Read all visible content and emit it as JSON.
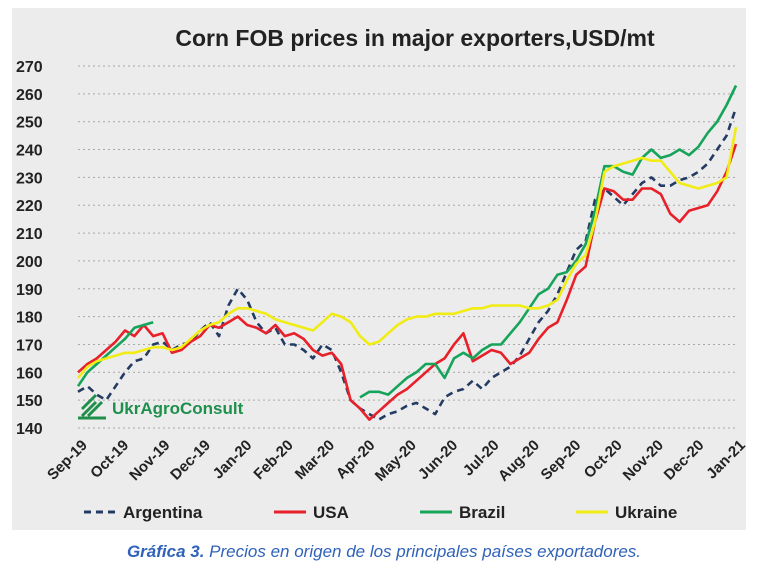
{
  "chart_data": {
    "type": "line",
    "title": "Corn FOB prices in major exporters,USD/mt",
    "ylim": [
      140,
      270
    ],
    "yticks": [
      140,
      150,
      160,
      170,
      180,
      190,
      200,
      210,
      220,
      230,
      240,
      250,
      260,
      270
    ],
    "x": [
      0,
      1,
      2,
      3,
      4,
      5,
      6,
      7,
      8,
      9,
      10,
      11,
      12,
      13,
      14,
      15,
      16,
      17,
      18,
      19,
      20,
      21,
      22,
      23,
      24,
      25,
      26,
      27,
      28,
      29,
      30,
      31,
      32,
      33,
      34,
      35,
      36,
      37,
      38,
      39,
      40,
      41,
      42,
      43,
      44,
      45,
      46,
      47,
      48,
      49,
      50,
      51,
      52,
      53,
      54,
      55,
      56,
      57,
      58,
      59,
      60,
      61,
      62,
      63,
      64,
      65,
      66,
      67,
      68,
      69,
      70
    ],
    "xtick_labels": [
      "Sep-19",
      "Oct-19",
      "Nov-19",
      "Dec-19",
      "Jan-20",
      "Feb-20",
      "Mar-20",
      "Apr-20",
      "May-20",
      "Jun-20",
      "Jul-20",
      "Aug-20",
      "Sep-20",
      "Oct-20",
      "Nov-20",
      "Dec-20",
      "Jan-21"
    ],
    "xtick_positions": [
      0,
      4.4,
      8.8,
      13.1,
      17.5,
      21.9,
      26.3,
      30.6,
      35,
      39.4,
      43.8,
      48.1,
      52.5,
      56.9,
      61.3,
      65.6,
      70
    ],
    "grid": true,
    "legend_position": "bottom",
    "series": [
      {
        "name": "Argentina",
        "color": "#243b63",
        "dash": "7,5",
        "values": [
          153,
          155,
          152,
          150,
          155,
          160,
          164,
          165,
          170,
          171,
          168,
          170,
          171,
          175,
          178,
          173,
          184,
          190,
          186,
          178,
          174,
          176,
          170,
          170,
          168,
          165,
          170,
          168,
          160,
          150,
          147,
          145,
          143,
          145,
          146,
          148,
          149,
          147,
          145,
          151,
          153,
          154,
          157,
          154,
          158,
          160,
          162,
          166,
          172,
          178,
          182,
          188,
          196,
          204,
          207,
          222,
          226,
          223,
          220,
          224,
          228,
          230,
          227,
          227,
          229,
          230,
          232,
          235,
          240,
          245,
          255
        ]
      },
      {
        "name": "USA",
        "color": "#e8202a",
        "dash": "",
        "values": [
          160,
          163,
          165,
          168,
          171,
          175,
          173,
          177,
          173,
          174,
          167,
          168,
          171,
          173,
          177,
          176,
          178,
          180,
          177,
          176,
          174,
          177,
          173,
          174,
          172,
          168,
          166,
          167,
          163,
          150,
          147,
          143,
          146,
          149,
          152,
          154,
          157,
          160,
          163,
          165,
          170,
          174,
          164,
          166,
          168,
          167,
          163,
          165,
          167,
          172,
          176,
          178,
          186,
          195,
          198,
          214,
          226,
          225,
          222,
          222,
          226,
          226,
          224,
          217,
          214,
          218,
          219,
          220,
          225,
          232,
          242
        ]
      },
      {
        "name": "Brazil",
        "color": "#16a35a",
        "dash": "",
        "values": [
          155,
          160,
          163,
          166,
          169,
          172,
          176,
          177,
          178,
          null,
          null,
          null,
          null,
          null,
          null,
          null,
          null,
          null,
          null,
          null,
          null,
          null,
          null,
          null,
          null,
          null,
          null,
          null,
          null,
          null,
          151,
          153,
          153,
          152,
          155,
          158,
          160,
          163,
          163,
          158,
          165,
          167,
          165,
          168,
          170,
          170,
          174,
          178,
          183,
          188,
          190,
          195,
          196,
          200,
          206,
          218,
          234,
          234,
          232,
          231,
          237,
          240,
          237,
          238,
          240,
          238,
          241,
          246,
          250,
          256,
          263
        ]
      },
      {
        "name": "Ukraine",
        "color": "#f0ec14",
        "dash": "",
        "values": [
          158,
          162,
          164,
          165,
          166,
          167,
          167,
          168,
          169,
          169,
          168,
          169,
          172,
          175,
          177,
          178,
          181,
          183,
          183,
          182,
          181,
          179,
          178,
          177,
          176,
          175,
          178,
          181,
          180,
          178,
          173,
          170,
          171,
          174,
          177,
          179,
          180,
          180,
          181,
          181,
          181,
          182,
          183,
          183,
          184,
          184,
          184,
          184,
          183,
          183,
          184,
          186,
          193,
          199,
          202,
          214,
          232,
          234,
          235,
          236,
          237,
          236,
          236,
          232,
          228,
          227,
          226,
          227,
          228,
          230,
          248
        ]
      }
    ]
  },
  "legend": [
    {
      "label": "Argentina"
    },
    {
      "label": "USA"
    },
    {
      "label": "Brazil"
    },
    {
      "label": "Ukraine"
    }
  ],
  "logo": {
    "text": "UkrAgroConsult",
    "color": "#1f8f4c"
  },
  "caption": {
    "bold": "Gráfica 3.",
    "rest": " Precios en origen de los principales países exportadores."
  }
}
